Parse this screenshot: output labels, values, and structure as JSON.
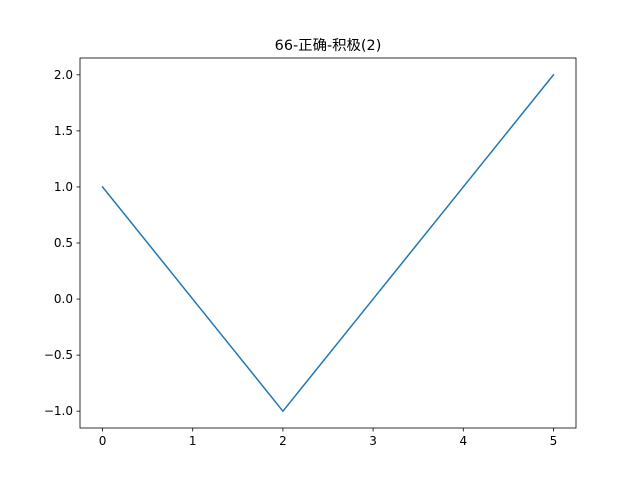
{
  "chart_data": {
    "type": "line",
    "title": "66-正确-积极(2)",
    "xlabel": "",
    "ylabel": "",
    "x": [
      0,
      1,
      2,
      3,
      4,
      5
    ],
    "series": [
      {
        "values": [
          1.0,
          0.0,
          -1.0,
          0.0,
          1.0,
          2.0
        ],
        "color": "#1f77b4"
      }
    ],
    "xlim": [
      -0.25,
      5.25
    ],
    "ylim": [
      -1.15,
      2.15
    ],
    "xticks": [
      0,
      1,
      2,
      3,
      4,
      5
    ],
    "xtick_labels": [
      "0",
      "1",
      "2",
      "3",
      "4",
      "5"
    ],
    "yticks": [
      -1.0,
      -0.5,
      0.0,
      0.5,
      1.0,
      1.5,
      2.0
    ],
    "ytick_labels": [
      "−1.0",
      "−0.5",
      "0.0",
      "0.5",
      "1.0",
      "1.5",
      "2.0"
    ],
    "grid": false,
    "legend": "none"
  }
}
